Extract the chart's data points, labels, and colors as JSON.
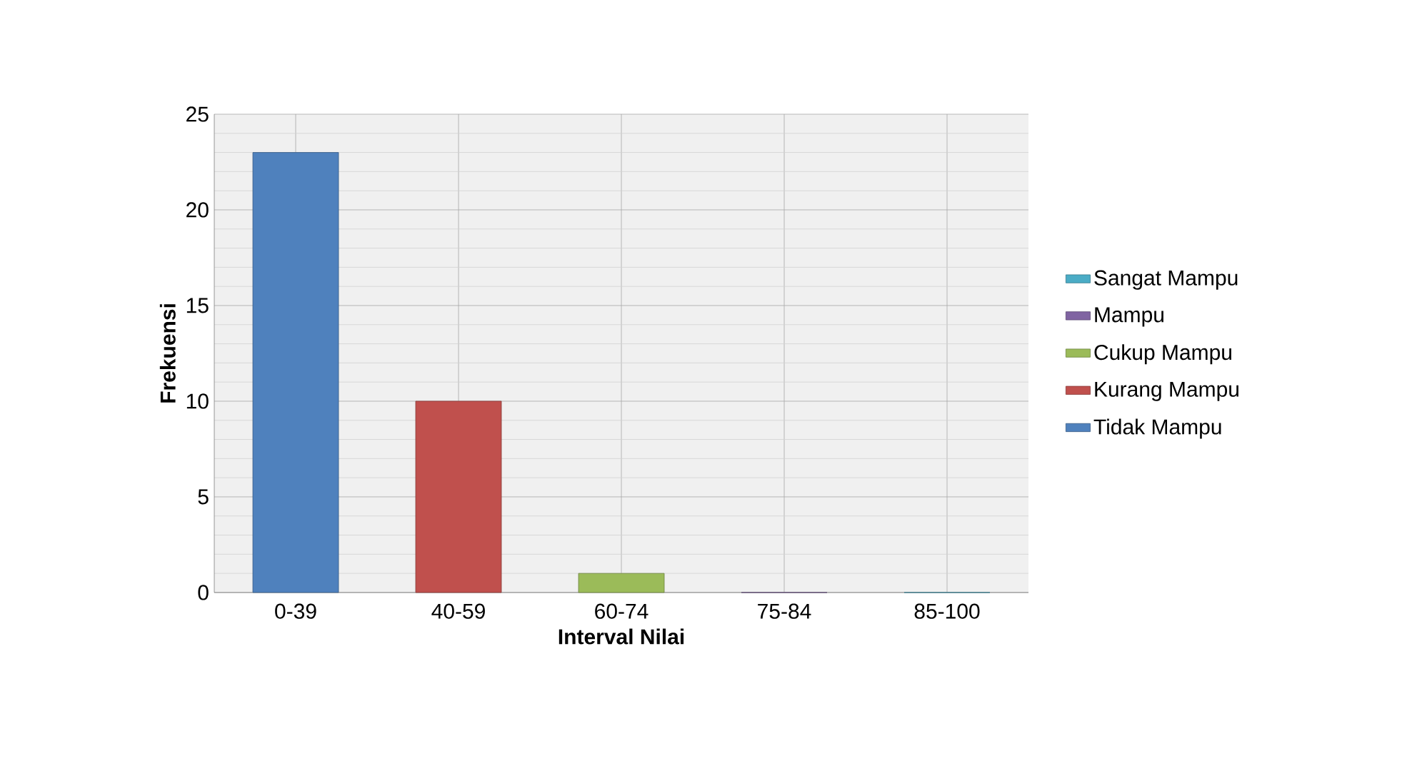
{
  "chart_data": {
    "type": "bar",
    "xlabel": "Interval Nilai",
    "ylabel": "Frekuensi",
    "categories": [
      "0-39",
      "40-59",
      "60-74",
      "75-84",
      "85-100"
    ],
    "series": [
      {
        "name": "Tidak Mampu",
        "color": "#4f81bd",
        "values": [
          23,
          null,
          null,
          null,
          null
        ]
      },
      {
        "name": "Kurang Mampu",
        "color": "#c0504d",
        "values": [
          null,
          10,
          null,
          null,
          null
        ]
      },
      {
        "name": "Cukup Mampu",
        "color": "#9bbb59",
        "values": [
          null,
          null,
          1,
          null,
          null
        ]
      },
      {
        "name": "Mampu",
        "color": "#8064a2",
        "values": [
          null,
          null,
          null,
          0,
          null
        ]
      },
      {
        "name": "Sangat Mampu",
        "color": "#4bacc6",
        "values": [
          null,
          null,
          null,
          null,
          0
        ]
      }
    ],
    "ylim": [
      0,
      25
    ],
    "yticks": [
      0,
      5,
      10,
      15,
      20,
      25
    ],
    "grid": true,
    "legend": "right"
  }
}
